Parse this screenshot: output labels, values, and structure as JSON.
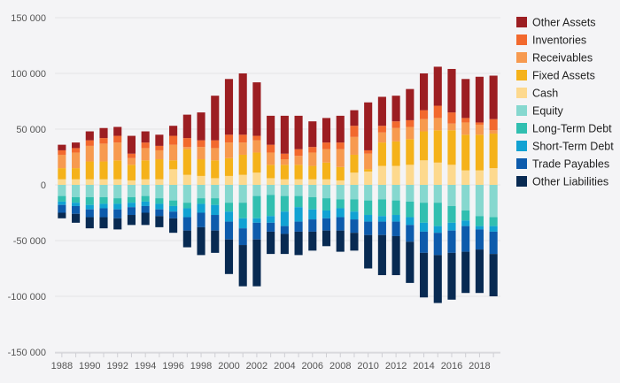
{
  "chart_data": {
    "type": "bar",
    "stacked": true,
    "diverging": true,
    "title": "",
    "xlabel": "",
    "ylabel": "",
    "ylim": [
      -150000,
      150000
    ],
    "y_ticks": [
      -150000,
      -100000,
      -50000,
      0,
      50000,
      100000,
      150000
    ],
    "y_tick_labels": [
      "-150 000",
      "-100 000",
      "-50 000",
      "0",
      "50 000",
      "100 000",
      "150 000"
    ],
    "x_tick_labels": [
      "1988",
      "1990",
      "1992",
      "1994",
      "1996",
      "1998",
      "2000",
      "2002",
      "2004",
      "2006",
      "2008",
      "2010",
      "2012",
      "2014",
      "2016",
      "2018"
    ],
    "grid": true,
    "legend_position": "right",
    "categories": [
      "1988",
      "1989",
      "1990",
      "1991",
      "1992",
      "1993",
      "1994",
      "1995",
      "1996",
      "1997",
      "1998",
      "1999",
      "2000",
      "2001",
      "2002",
      "2003",
      "2004",
      "2005",
      "2006",
      "2007",
      "2008",
      "2009",
      "2010",
      "2011",
      "2012",
      "2013",
      "2014",
      "2015",
      "2016",
      "2017",
      "2018",
      "2019"
    ],
    "positive_series": [
      {
        "name": "Cash",
        "color": "#fdd98e",
        "values": [
          5000,
          5000,
          5000,
          5000,
          5000,
          4000,
          5000,
          5000,
          14000,
          9000,
          8000,
          6000,
          8000,
          9000,
          11000,
          6000,
          5000,
          5000,
          5000,
          5000,
          4000,
          11000,
          12000,
          17000,
          17000,
          18000,
          22000,
          20000,
          18000,
          13000,
          13000,
          15000
        ]
      },
      {
        "name": "Fixed Assets",
        "color": "#f5b21a",
        "values": [
          10000,
          10000,
          16000,
          16000,
          17000,
          14000,
          17000,
          18000,
          8000,
          23000,
          15000,
          16000,
          16000,
          18000,
          18000,
          12000,
          13000,
          13000,
          12000,
          15000,
          12000,
          16000,
          2000,
          21000,
          22000,
          23000,
          26000,
          29000,
          31000,
          32000,
          32000,
          31000
        ]
      },
      {
        "name": "Receivables",
        "color": "#f79a4f",
        "values": [
          12000,
          14000,
          14000,
          16000,
          16000,
          6000,
          11000,
          8000,
          14000,
          2000,
          11000,
          11000,
          14000,
          11000,
          11000,
          11000,
          5000,
          8000,
          12000,
          12000,
          16000,
          16000,
          14000,
          9000,
          12000,
          11000,
          11000,
          11000,
          6000,
          11000,
          9000,
          3000
        ]
      },
      {
        "name": "Inventories",
        "color": "#f2692e",
        "values": [
          4000,
          4000,
          5000,
          5000,
          6000,
          4000,
          5000,
          4000,
          8000,
          8000,
          6000,
          7000,
          7000,
          7000,
          4000,
          7000,
          5000,
          6000,
          5000,
          6000,
          6000,
          10000,
          3000,
          6000,
          6000,
          6000,
          8000,
          11000,
          10000,
          4000,
          2000,
          10000
        ]
      },
      {
        "name": "Other Assets",
        "color": "#9c1e22",
        "values": [
          5000,
          5000,
          8000,
          9000,
          8000,
          16000,
          10000,
          10000,
          9000,
          21000,
          25000,
          40000,
          50000,
          55000,
          48000,
          26000,
          34000,
          30000,
          23000,
          22000,
          24000,
          14000,
          43000,
          26000,
          23000,
          28000,
          33000,
          35000,
          39000,
          35000,
          41000,
          39000
        ]
      }
    ],
    "negative_series": [
      {
        "name": "Equity",
        "color": "#86d8cf",
        "values": [
          -10000,
          -11000,
          -11000,
          -11000,
          -12000,
          -11000,
          -10000,
          -12000,
          -14000,
          -16000,
          -12000,
          -12000,
          -16000,
          -16000,
          -10000,
          -9000,
          -10000,
          -10000,
          -11000,
          -12000,
          -13000,
          -13000,
          -14000,
          -13000,
          -14000,
          -15000,
          -16000,
          -16000,
          -19000,
          -23000,
          -28000,
          -29000
        ]
      },
      {
        "name": "Long-Term Debt",
        "color": "#31bfb0",
        "values": [
          -5000,
          -5000,
          -7000,
          -6000,
          -5000,
          -5000,
          -5000,
          -5000,
          -5000,
          -5000,
          -5000,
          -6000,
          -8000,
          -14000,
          -20000,
          -19000,
          -14000,
          -10000,
          -11000,
          -11000,
          -8000,
          -11000,
          -13000,
          -15000,
          -13000,
          -14000,
          -18000,
          -21000,
          -15000,
          -9000,
          -9000,
          -8000
        ]
      },
      {
        "name": "Short-Term Debt",
        "color": "#11a2d3",
        "values": [
          -3000,
          -3000,
          -4000,
          -4000,
          -5000,
          -4000,
          -4000,
          -5000,
          -5000,
          -8000,
          -8000,
          -9000,
          -9000,
          -9000,
          -4000,
          -6000,
          -13000,
          -13000,
          -9000,
          -7000,
          -8000,
          -7000,
          -6000,
          -5000,
          -6000,
          -7000,
          -8000,
          -6000,
          -7000,
          -5000,
          -3000,
          -5000
        ]
      },
      {
        "name": "Trade Payables",
        "color": "#0d5bac",
        "values": [
          -7000,
          -7000,
          -7000,
          -8000,
          -8000,
          -7000,
          -6000,
          -6000,
          -6000,
          -12000,
          -13000,
          -14000,
          -16000,
          -15000,
          -15000,
          -8000,
          -7000,
          -9000,
          -11000,
          -11000,
          -12000,
          -12000,
          -12000,
          -12000,
          -13000,
          -15000,
          -19000,
          -20000,
          -20000,
          -23000,
          -18000,
          -20000
        ]
      },
      {
        "name": "Other Liabilities",
        "color": "#082a52",
        "values": [
          -5000,
          -8000,
          -10000,
          -10000,
          -10000,
          -9000,
          -11000,
          -10000,
          -13000,
          -15000,
          -25000,
          -20000,
          -31000,
          -37000,
          -42000,
          -20000,
          -18000,
          -21000,
          -17000,
          -14000,
          -19000,
          -16000,
          -30000,
          -36000,
          -35000,
          -37000,
          -40000,
          -43000,
          -42000,
          -37000,
          -39000,
          -38000
        ]
      }
    ],
    "legend_order": [
      "Other Assets",
      "Inventories",
      "Receivables",
      "Fixed Assets",
      "Cash",
      "Equity",
      "Long-Term Debt",
      "Short-Term Debt",
      "Trade Payables",
      "Other Liabilities"
    ]
  }
}
